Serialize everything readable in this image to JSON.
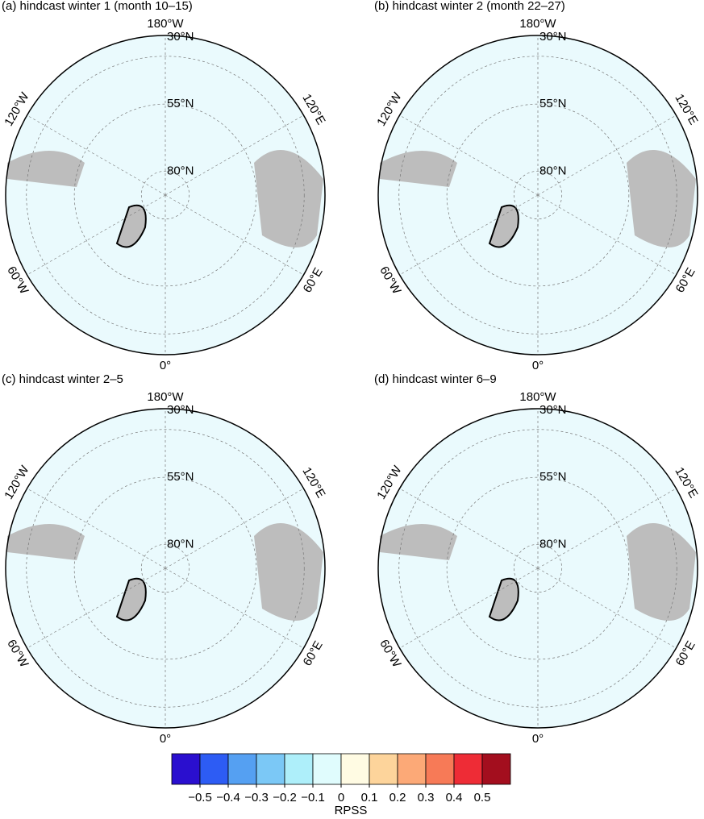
{
  "panels": [
    {
      "title": "(a) hindcast winter 1 (month 10–15)",
      "lon_labels": [
        "180°W",
        "120°E",
        "60°E",
        "0°",
        "60°W",
        "120°W"
      ],
      "lat_labels": [
        "30°N",
        "55°N",
        "80°N"
      ]
    },
    {
      "title": "(b) hindcast winter 2 (month 22–27)",
      "lon_labels": [
        "180°W",
        "120°E",
        "60°E",
        "0°",
        "60°W",
        "120°W"
      ],
      "lat_labels": [
        "30°N",
        "55°N",
        "80°N"
      ]
    },
    {
      "title": "(c) hindcast winter 2–5",
      "lon_labels": [
        "180°W",
        "120°E",
        "60°E",
        "0°",
        "60°W",
        "120°W"
      ],
      "lat_labels": [
        "30°N",
        "55°N",
        "80°N"
      ]
    },
    {
      "title": "(d) hindcast winter 6–9",
      "lon_labels": [
        "180°W",
        "120°E",
        "60°E",
        "0°",
        "60°W",
        "120°W"
      ],
      "lat_labels": [
        "30°N",
        "55°N",
        "80°N"
      ]
    }
  ],
  "colorbar": {
    "colors": [
      "#2a0fcf",
      "#2d5cf4",
      "#55a0f2",
      "#7bc8f6",
      "#aeeffa",
      "#e0fcfd",
      "#fffbe3",
      "#fdd49b",
      "#fca977",
      "#f77a57",
      "#ee2c36",
      "#a30e1e"
    ],
    "ticks": [
      {
        "value": -0.5,
        "label": "−0.5"
      },
      {
        "value": -0.4,
        "label": "−0.4"
      },
      {
        "value": -0.3,
        "label": "−0.3"
      },
      {
        "value": -0.2,
        "label": "−0.2"
      },
      {
        "value": -0.1,
        "label": "−0.1"
      },
      0,
      0.1,
      0.2,
      0.3,
      0.4,
      0.5
    ],
    "label": "RPSS"
  }
}
